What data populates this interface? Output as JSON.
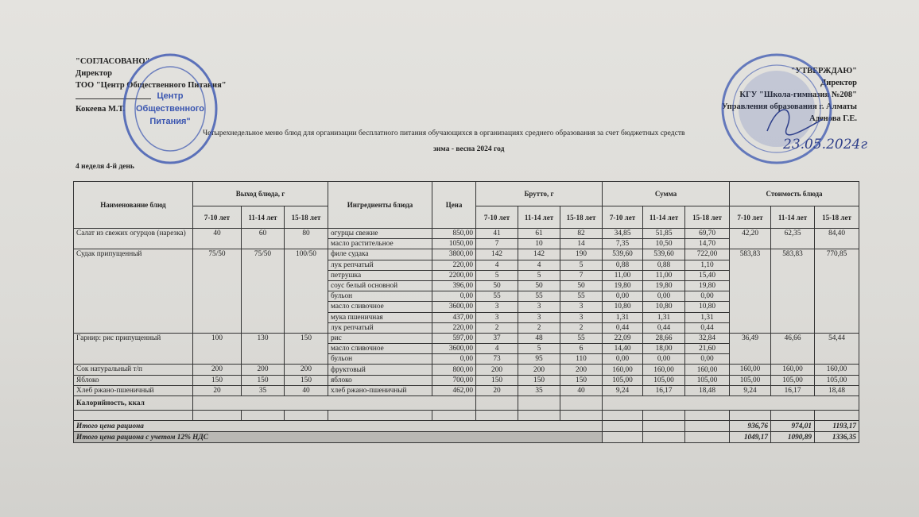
{
  "approval_left": {
    "heading": "\"СОГЛАСОВАНО\"",
    "position": "Директор",
    "organization": "ТОО \"Центр Общественного Питания\"",
    "signer": "Кокеева М.Т."
  },
  "approval_right": {
    "heading": "\"УТВЕРЖДАЮ\"",
    "position": "Директор",
    "organization": "КГУ \"Школа-гимназия №208\"",
    "department": "Управления образования г. Алматы",
    "signer": "Аденова Г.Е."
  },
  "title": "Четырехнедельное меню блюд для организации бесплатного питания обучающихся в организациях среднего образования за счет бюджетных средств",
  "subtitle": "зима - весна 2024 год",
  "day": "4 неделя 4-й день",
  "stamps": {
    "left_text": "Центр Общественного Питания",
    "right_text": "KOMMУНАЛДЫҚ MEMЛЕКЕТТІК MEKEMECI № 208",
    "handwritten_date": "23.05.2024г",
    "stamp_color": "#3a55b0"
  },
  "table": {
    "headers": {
      "dish": "Наименование блюд",
      "yield": "Выход блюда, г",
      "ingredients": "Ингредиенты блюда",
      "price": "Цена",
      "brutto": "Брутто, г",
      "sum": "Сумма",
      "cost": "Стоимость блюда",
      "ages": [
        "7-10 лет",
        "11-14 лет",
        "15-18 лет"
      ]
    },
    "dishes": [
      {
        "name": "Салат из свежих огурцов (нарезка)",
        "yield": [
          "40",
          "60",
          "80"
        ],
        "cost": [
          "42,20",
          "62,35",
          "84,40"
        ],
        "ingredients": [
          {
            "name": "огурцы свежие",
            "price": "850,00",
            "brutto": [
              "41",
              "61",
              "82"
            ],
            "sum": [
              "34,85",
              "51,85",
              "69,70"
            ]
          },
          {
            "name": "масло растительное",
            "price": "1050,00",
            "brutto": [
              "7",
              "10",
              "14"
            ],
            "sum": [
              "7,35",
              "10,50",
              "14,70"
            ]
          }
        ]
      },
      {
        "name": "Судак припущенный",
        "yield": [
          "75/50",
          "75/50",
          "100/50"
        ],
        "cost": [
          "583,83",
          "583,83",
          "770,85"
        ],
        "ingredients": [
          {
            "name": "филе судака",
            "price": "3800,00",
            "brutto": [
              "142",
              "142",
              "190"
            ],
            "sum": [
              "539,60",
              "539,60",
              "722,00"
            ]
          },
          {
            "name": "лук репчатый",
            "price": "220,00",
            "brutto": [
              "4",
              "4",
              "5"
            ],
            "sum": [
              "0,88",
              "0,88",
              "1,10"
            ]
          },
          {
            "name": "петрушка",
            "price": "2200,00",
            "brutto": [
              "5",
              "5",
              "7"
            ],
            "sum": [
              "11,00",
              "11,00",
              "15,40"
            ]
          },
          {
            "name": "соус белый основной",
            "price": "396,00",
            "brutto": [
              "50",
              "50",
              "50"
            ],
            "sum": [
              "19,80",
              "19,80",
              "19,80"
            ]
          },
          {
            "name": "бульон",
            "price": "0,00",
            "brutto": [
              "55",
              "55",
              "55"
            ],
            "sum": [
              "0,00",
              "0,00",
              "0,00"
            ]
          },
          {
            "name": "масло сливочное",
            "price": "3600,00",
            "brutto": [
              "3",
              "3",
              "3"
            ],
            "sum": [
              "10,80",
              "10,80",
              "10,80"
            ]
          },
          {
            "name": "мука пшеничная",
            "price": "437,00",
            "brutto": [
              "3",
              "3",
              "3"
            ],
            "sum": [
              "1,31",
              "1,31",
              "1,31"
            ]
          },
          {
            "name": "лук репчатый",
            "price": "220,00",
            "brutto": [
              "2",
              "2",
              "2"
            ],
            "sum": [
              "0,44",
              "0,44",
              "0,44"
            ]
          }
        ]
      },
      {
        "name": "Гарнир: рис припущенный",
        "yield": [
          "100",
          "130",
          "150"
        ],
        "cost": [
          "36,49",
          "46,66",
          "54,44"
        ],
        "ingredients": [
          {
            "name": "рис",
            "price": "597,00",
            "brutto": [
              "37",
              "48",
              "55"
            ],
            "sum": [
              "22,09",
              "28,66",
              "32,84"
            ]
          },
          {
            "name": "масло сливочное",
            "price": "3600,00",
            "brutto": [
              "4",
              "5",
              "6"
            ],
            "sum": [
              "14,40",
              "18,00",
              "21,60"
            ]
          },
          {
            "name": "бульон",
            "price": "0,00",
            "brutto": [
              "73",
              "95",
              "110"
            ],
            "sum": [
              "0,00",
              "0,00",
              "0,00"
            ]
          }
        ]
      },
      {
        "name": "Сок натуральный т/п",
        "yield": [
          "200",
          "200",
          "200"
        ],
        "cost": [
          "160,00",
          "160,00",
          "160,00"
        ],
        "ingredients": [
          {
            "name": "фруктовый",
            "price": "800,00",
            "brutto": [
              "200",
              "200",
              "200"
            ],
            "sum": [
              "160,00",
              "160,00",
              "160,00"
            ]
          }
        ]
      },
      {
        "name": "Яблоко",
        "yield": [
          "150",
          "150",
          "150"
        ],
        "cost": [
          "105,00",
          "105,00",
          "105,00"
        ],
        "ingredients": [
          {
            "name": "яблоко",
            "price": "700,00",
            "brutto": [
              "150",
              "150",
              "150"
            ],
            "sum": [
              "105,00",
              "105,00",
              "105,00"
            ]
          }
        ]
      },
      {
        "name": "Хлеб ржано-пшеничный",
        "yield": [
          "20",
          "35",
          "40"
        ],
        "cost": [
          "9,24",
          "16,17",
          "18,48"
        ],
        "ingredients": [
          {
            "name": "хлеб ржано-пшеничный",
            "price": "462,00",
            "brutto": [
              "20",
              "35",
              "40"
            ],
            "sum": [
              "9,24",
              "16,17",
              "18,48"
            ]
          }
        ]
      }
    ],
    "calories_label": "Калорийность, ккал",
    "total_label": "Итого цена рациона",
    "total": [
      "936,76",
      "974,01",
      "1193,17"
    ],
    "total_vat_label": "Итого цена рациона с учетом 12% НДС",
    "total_vat": [
      "1049,17",
      "1090,89",
      "1336,35"
    ]
  }
}
